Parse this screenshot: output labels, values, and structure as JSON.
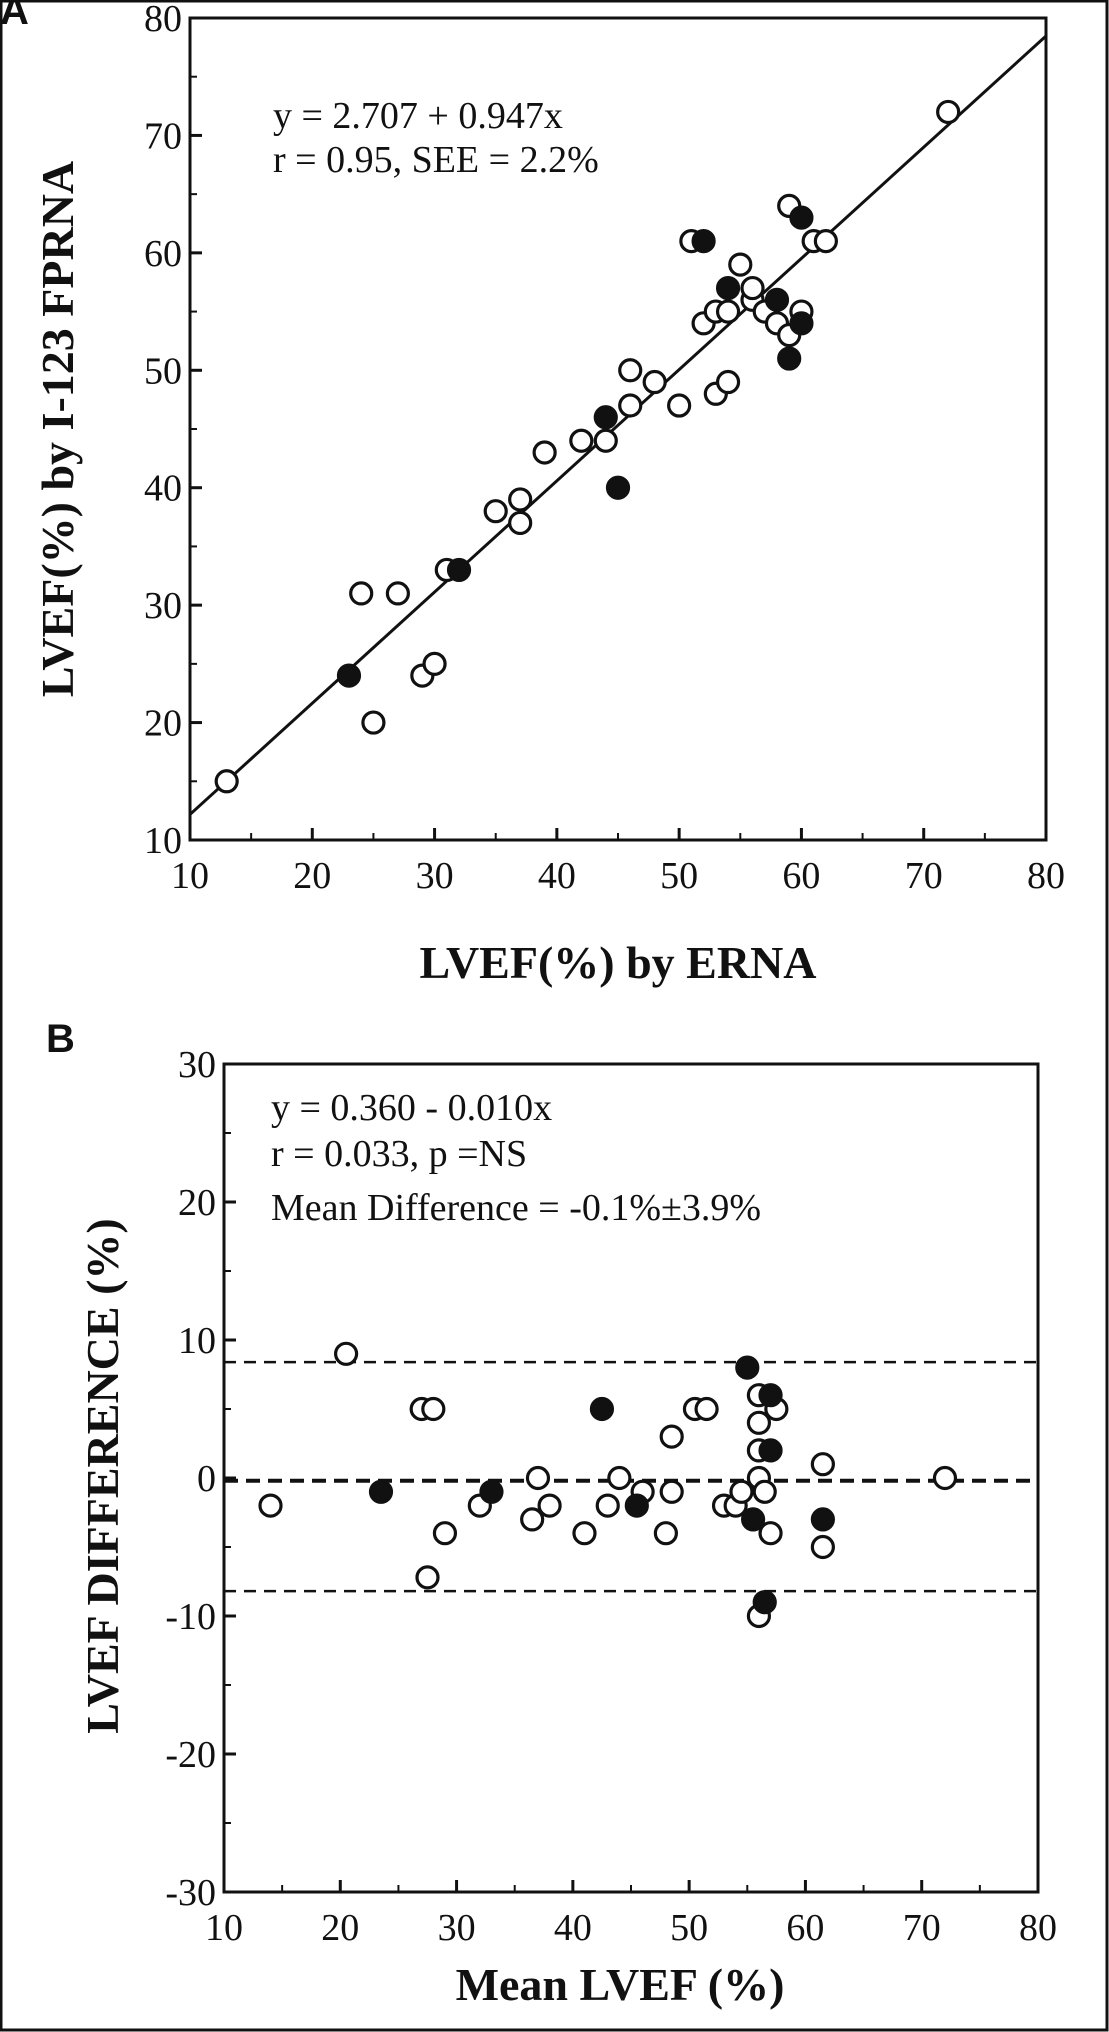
{
  "figure": {
    "frame_color": "#111111",
    "background": "#ffffff"
  },
  "chart_data": [
    {
      "panel": "A",
      "type": "scatter",
      "xlabel": "LVEF(%) by ERNA",
      "ylabel": "LVEF(%) by I-123 FPRNA",
      "xlim": [
        10,
        80
      ],
      "ylim": [
        10,
        80
      ],
      "xticks": [
        "10",
        "20",
        "30",
        "40",
        "50",
        "60",
        "70",
        "80"
      ],
      "yticks": [
        "10",
        "20",
        "30",
        "40",
        "50",
        "60",
        "70",
        "80"
      ],
      "grid": false,
      "annotations": [
        "y = 2.707 + 0.947x",
        "r = 0.95, SEE = 2.2%"
      ],
      "regression_line": {
        "intercept": 2.707,
        "slope": 0.947
      },
      "series": [
        {
          "marker": "open-circle",
          "points": [
            [
              13,
              15
            ],
            [
              24,
              31
            ],
            [
              27,
              31
            ],
            [
              25,
              20
            ],
            [
              29,
              24
            ],
            [
              30,
              25
            ],
            [
              31,
              33
            ],
            [
              35,
              38
            ],
            [
              37,
              39
            ],
            [
              37,
              37
            ],
            [
              39,
              43
            ],
            [
              42,
              44
            ],
            [
              44,
              44
            ],
            [
              46,
              47
            ],
            [
              46,
              50
            ],
            [
              48,
              49
            ],
            [
              50,
              47
            ],
            [
              51,
              61
            ],
            [
              52,
              54
            ],
            [
              53,
              55
            ],
            [
              53,
              48
            ],
            [
              54,
              49
            ],
            [
              54,
              55
            ],
            [
              55,
              59
            ],
            [
              56,
              56
            ],
            [
              56,
              57
            ],
            [
              57,
              55
            ],
            [
              58,
              54
            ],
            [
              59,
              53
            ],
            [
              59,
              64
            ],
            [
              60,
              55
            ],
            [
              61,
              61
            ],
            [
              62,
              61
            ],
            [
              72,
              72
            ]
          ]
        },
        {
          "marker": "filled-circle",
          "points": [
            [
              23,
              24
            ],
            [
              32,
              33
            ],
            [
              44,
              46
            ],
            [
              45,
              40
            ],
            [
              52,
              61
            ],
            [
              54,
              57
            ],
            [
              58,
              56
            ],
            [
              59,
              51
            ],
            [
              60,
              63
            ],
            [
              60,
              54
            ]
          ]
        }
      ]
    },
    {
      "panel": "B",
      "type": "scatter",
      "xlabel": "Mean LVEF (%)",
      "ylabel": "LVEF DIFFERENCE (%)",
      "xlim": [
        10,
        80
      ],
      "ylim": [
        -30,
        30
      ],
      "xticks": [
        "10",
        "20",
        "30",
        "40",
        "50",
        "60",
        "70",
        "80"
      ],
      "yticks": [
        "-30",
        "-20",
        "-10",
        "0",
        "10",
        "20",
        "30"
      ],
      "grid": false,
      "annotations": [
        "y = 0.360 - 0.010x",
        "r = 0.033, p =NS",
        "Mean Difference = -0.1%±3.9%"
      ],
      "reference_lines": [
        {
          "y": 8.4,
          "style": "dashed"
        },
        {
          "y": -0.2,
          "style": "dashed-bold"
        },
        {
          "y": -8.2,
          "style": "dashed"
        }
      ],
      "series": [
        {
          "marker": "open-circle",
          "points": [
            [
              14,
              -2
            ],
            [
              20.5,
              9
            ],
            [
              27,
              5
            ],
            [
              28,
              5
            ],
            [
              27.5,
              -7.2
            ],
            [
              29,
              -4
            ],
            [
              32,
              -2
            ],
            [
              36.5,
              -3
            ],
            [
              37,
              0
            ],
            [
              38,
              -2
            ],
            [
              41,
              -4
            ],
            [
              43,
              -2
            ],
            [
              44,
              0
            ],
            [
              46,
              -1
            ],
            [
              48,
              -4
            ],
            [
              48.5,
              -1
            ],
            [
              48.5,
              3
            ],
            [
              50.5,
              5
            ],
            [
              51.5,
              5
            ],
            [
              53,
              -2
            ],
            [
              54,
              -2
            ],
            [
              54.5,
              -1
            ],
            [
              56,
              6
            ],
            [
              56,
              4
            ],
            [
              56,
              2
            ],
            [
              56,
              0
            ],
            [
              56,
              -10
            ],
            [
              56.5,
              -1
            ],
            [
              57,
              -4
            ],
            [
              57.5,
              5
            ],
            [
              61.5,
              1
            ],
            [
              61.5,
              -5
            ],
            [
              72,
              0
            ]
          ]
        },
        {
          "marker": "filled-circle",
          "points": [
            [
              23.5,
              -1
            ],
            [
              33,
              -1
            ],
            [
              42.5,
              5
            ],
            [
              45.5,
              -2
            ],
            [
              55,
              8
            ],
            [
              55.5,
              -3
            ],
            [
              57,
              6
            ],
            [
              57,
              2
            ],
            [
              56.5,
              -9
            ],
            [
              61.5,
              -3
            ]
          ]
        }
      ]
    }
  ]
}
